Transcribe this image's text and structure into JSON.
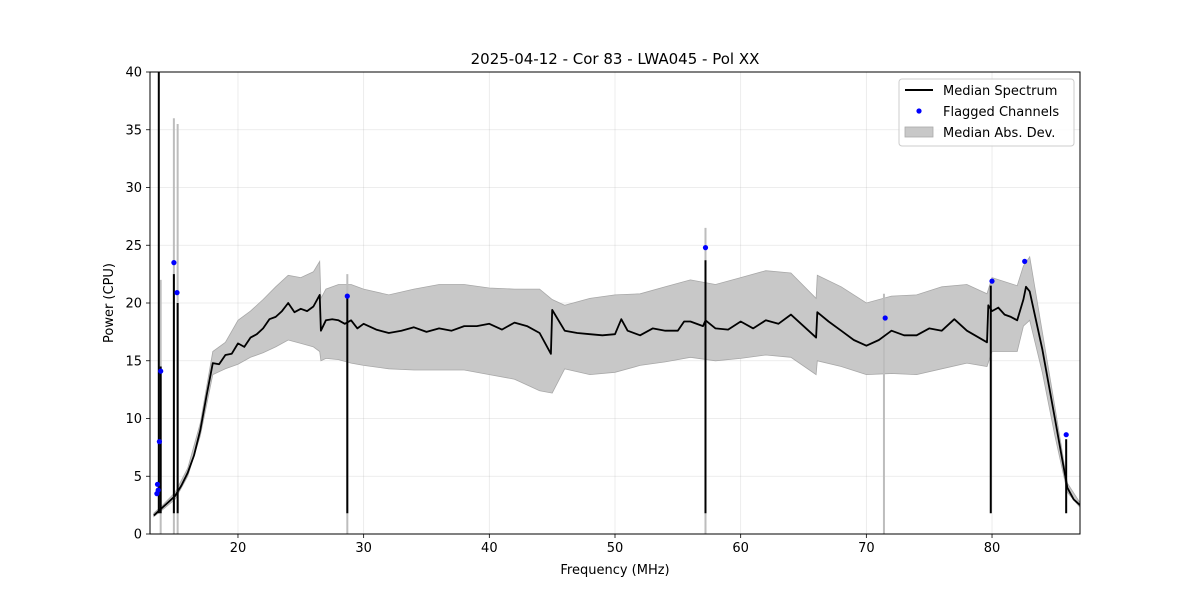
{
  "chart_data": {
    "type": "line",
    "title": "2025-04-12 - Cor 83 - LWA045 - Pol XX",
    "xlabel": "Frequency (MHz)",
    "ylabel": "Power (CPU)",
    "xlim": [
      13,
      87
    ],
    "ylim": [
      0,
      40
    ],
    "xticks": [
      20,
      30,
      40,
      50,
      60,
      70,
      80
    ],
    "yticks": [
      0,
      5,
      10,
      15,
      20,
      25,
      30,
      35,
      40
    ],
    "grid": true,
    "legend_position": "top-right",
    "legend": [
      {
        "label": "Median Spectrum",
        "kind": "line",
        "color": "#000000"
      },
      {
        "label": "Flagged Channels",
        "kind": "point",
        "color": "#0000ff"
      },
      {
        "label": "Median Abs. Dev.",
        "kind": "band",
        "color": "#c8c8c8"
      }
    ],
    "series": [
      {
        "name": "Median Spectrum",
        "color": "#000000",
        "points": [
          [
            13.3,
            1.6
          ],
          [
            13.5,
            1.8
          ],
          [
            13.6,
            1.9
          ],
          [
            14,
            2.3
          ],
          [
            14.5,
            2.8
          ],
          [
            15,
            3.3
          ],
          [
            15.5,
            4.2
          ],
          [
            16,
            5.3
          ],
          [
            16.5,
            6.8
          ],
          [
            17,
            9.0
          ],
          [
            17.5,
            12.0
          ],
          [
            18,
            14.8
          ],
          [
            18.5,
            14.7
          ],
          [
            19,
            15.5
          ],
          [
            19.5,
            15.6
          ],
          [
            20,
            16.5
          ],
          [
            20.5,
            16.2
          ],
          [
            21,
            17.0
          ],
          [
            21.5,
            17.3
          ],
          [
            22,
            17.8
          ],
          [
            22.5,
            18.6
          ],
          [
            23,
            18.8
          ],
          [
            23.5,
            19.3
          ],
          [
            24,
            20.0
          ],
          [
            24.5,
            19.2
          ],
          [
            25,
            19.5
          ],
          [
            25.5,
            19.3
          ],
          [
            26,
            19.7
          ],
          [
            26.5,
            20.7
          ],
          [
            26.6,
            17.6
          ],
          [
            27,
            18.5
          ],
          [
            27.5,
            18.6
          ],
          [
            28,
            18.5
          ],
          [
            28.5,
            18.2
          ],
          [
            29,
            18.5
          ],
          [
            29.5,
            17.8
          ],
          [
            30,
            18.2
          ],
          [
            31,
            17.7
          ],
          [
            32,
            17.4
          ],
          [
            33,
            17.6
          ],
          [
            34,
            17.9
          ],
          [
            35,
            17.5
          ],
          [
            36,
            17.8
          ],
          [
            37,
            17.6
          ],
          [
            38,
            18.0
          ],
          [
            39,
            18.0
          ],
          [
            40,
            18.2
          ],
          [
            41,
            17.7
          ],
          [
            42,
            18.3
          ],
          [
            43,
            18.0
          ],
          [
            44,
            17.4
          ],
          [
            44.9,
            15.6
          ],
          [
            45,
            19.4
          ],
          [
            46,
            17.6
          ],
          [
            47,
            17.4
          ],
          [
            48,
            17.3
          ],
          [
            49,
            17.2
          ],
          [
            50,
            17.3
          ],
          [
            50.5,
            18.6
          ],
          [
            51,
            17.6
          ],
          [
            52,
            17.2
          ],
          [
            53,
            17.8
          ],
          [
            54,
            17.6
          ],
          [
            55,
            17.6
          ],
          [
            55.5,
            18.4
          ],
          [
            56,
            18.4
          ],
          [
            57,
            18.0
          ],
          [
            57.2,
            18.5
          ],
          [
            58,
            17.8
          ],
          [
            59,
            17.7
          ],
          [
            60,
            18.4
          ],
          [
            61,
            17.8
          ],
          [
            62,
            18.5
          ],
          [
            63,
            18.2
          ],
          [
            64,
            19.0
          ],
          [
            65,
            18.0
          ],
          [
            66,
            17.0
          ],
          [
            66.1,
            19.2
          ],
          [
            67,
            18.4
          ],
          [
            68,
            17.6
          ],
          [
            69,
            16.8
          ],
          [
            70,
            16.3
          ],
          [
            71,
            16.8
          ],
          [
            72,
            17.6
          ],
          [
            73,
            17.2
          ],
          [
            74,
            17.2
          ],
          [
            75,
            17.8
          ],
          [
            76,
            17.6
          ],
          [
            77,
            18.6
          ],
          [
            78,
            17.6
          ],
          [
            79.6,
            16.6
          ],
          [
            79.7,
            19.8
          ],
          [
            80,
            19.3
          ],
          [
            80.5,
            19.6
          ],
          [
            81,
            19.0
          ],
          [
            81.5,
            18.8
          ],
          [
            82,
            18.5
          ],
          [
            82.5,
            20.3
          ],
          [
            82.7,
            21.4
          ],
          [
            83,
            21.0
          ],
          [
            83.5,
            18.5
          ],
          [
            84,
            16.0
          ],
          [
            84.5,
            13.0
          ],
          [
            85,
            10.0
          ],
          [
            85.5,
            7.0
          ],
          [
            86,
            4.0
          ],
          [
            86.5,
            3.0
          ],
          [
            87,
            2.5
          ]
        ],
        "band": [
          [
            13.3,
            1.5,
            1.8
          ],
          [
            14,
            2.1,
            2.5
          ],
          [
            15,
            3.0,
            3.6
          ],
          [
            16,
            5.0,
            5.7
          ],
          [
            17,
            8.5,
            9.6
          ],
          [
            18,
            13.8,
            15.8
          ],
          [
            19,
            14.3,
            16.6
          ],
          [
            20,
            14.7,
            18.5
          ],
          [
            21,
            15.3,
            19.3
          ],
          [
            22,
            15.7,
            20.3
          ],
          [
            23,
            16.2,
            21.4
          ],
          [
            24,
            16.8,
            22.4
          ],
          [
            25,
            16.5,
            22.2
          ],
          [
            26,
            16.2,
            22.7
          ],
          [
            26.5,
            15.8,
            23.6
          ],
          [
            26.6,
            15.0,
            20.4
          ],
          [
            27,
            15.2,
            21.2
          ],
          [
            28,
            15.1,
            21.6
          ],
          [
            29,
            14.8,
            21.6
          ],
          [
            30,
            14.6,
            21.2
          ],
          [
            32,
            14.3,
            20.7
          ],
          [
            34,
            14.2,
            21.2
          ],
          [
            36,
            14.2,
            21.6
          ],
          [
            38,
            14.2,
            21.6
          ],
          [
            40,
            13.8,
            21.3
          ],
          [
            42,
            13.4,
            21.2
          ],
          [
            44,
            12.4,
            21.2
          ],
          [
            45,
            12.2,
            20.3
          ],
          [
            46,
            14.3,
            19.8
          ],
          [
            48,
            13.8,
            20.4
          ],
          [
            50,
            14.0,
            20.7
          ],
          [
            52,
            14.6,
            20.8
          ],
          [
            54,
            14.9,
            21.4
          ],
          [
            56,
            15.3,
            22.0
          ],
          [
            58,
            15.0,
            21.6
          ],
          [
            60,
            15.2,
            22.2
          ],
          [
            62,
            15.5,
            22.8
          ],
          [
            64,
            15.3,
            22.6
          ],
          [
            66,
            13.8,
            20.4
          ],
          [
            66.1,
            15.0,
            22.4
          ],
          [
            68,
            14.5,
            21.4
          ],
          [
            70,
            13.8,
            20.0
          ],
          [
            72,
            13.9,
            20.6
          ],
          [
            74,
            13.8,
            20.7
          ],
          [
            76,
            14.3,
            21.4
          ],
          [
            78,
            14.8,
            21.6
          ],
          [
            79.6,
            14.5,
            20.8
          ],
          [
            80,
            15.8,
            22.2
          ],
          [
            82,
            15.8,
            21.5
          ],
          [
            82.5,
            18.0,
            23.2
          ],
          [
            83,
            18.5,
            24.0
          ],
          [
            84,
            14.0,
            17.5
          ],
          [
            85,
            8.5,
            11.0
          ],
          [
            86,
            3.6,
            4.4
          ],
          [
            87,
            2.3,
            2.7
          ]
        ],
        "spikes": [
          {
            "x": 13.7,
            "y": 40
          },
          {
            "x": 13.85,
            "y": 14.5
          },
          {
            "x": 14.9,
            "y": 22.5
          },
          {
            "x": 15.2,
            "y": 20.0
          },
          {
            "x": 28.7,
            "y": 20.4
          },
          {
            "x": 57.2,
            "y": 23.7
          },
          {
            "x": 79.9,
            "y": 21.5
          },
          {
            "x": 85.9,
            "y": 8.2
          }
        ],
        "band_spikes": [
          {
            "x": 14.9,
            "y": 36.0
          },
          {
            "x": 15.2,
            "y": 35.5
          },
          {
            "x": 13.85,
            "y": 22.0
          },
          {
            "x": 28.7,
            "y": 22.5
          },
          {
            "x": 57.2,
            "y": 26.5
          },
          {
            "x": 71.4,
            "y": 20.8
          }
        ]
      },
      {
        "name": "Flagged Channels",
        "color": "#0000ff",
        "points": [
          [
            13.55,
            3.5
          ],
          [
            13.6,
            4.3
          ],
          [
            13.65,
            3.8
          ],
          [
            13.75,
            8.0
          ],
          [
            13.85,
            14.1
          ],
          [
            14.9,
            23.5
          ],
          [
            15.15,
            20.9
          ],
          [
            28.7,
            20.6
          ],
          [
            57.2,
            24.8
          ],
          [
            71.5,
            18.7
          ],
          [
            80.0,
            21.9
          ],
          [
            82.6,
            23.6
          ],
          [
            85.9,
            8.6
          ]
        ]
      }
    ]
  }
}
